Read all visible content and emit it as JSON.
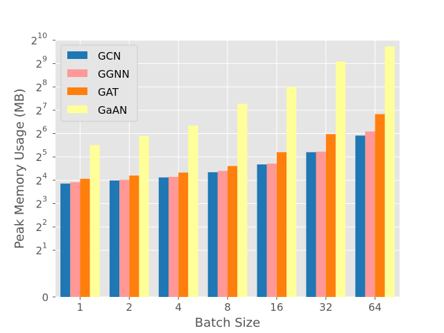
{
  "chart_data": {
    "type": "bar",
    "title": "",
    "xlabel": "Batch Size",
    "ylabel": "Peak Memory Usage (MB)",
    "categories": [
      "1",
      "2",
      "4",
      "8",
      "16",
      "32",
      "64"
    ],
    "y_scale": "log2",
    "ylim": [
      0,
      1024
    ],
    "y_ticks": [
      {
        "value": 0,
        "base": "0",
        "exp": ""
      },
      {
        "value": 2,
        "base": "2",
        "exp": "1"
      },
      {
        "value": 4,
        "base": "2",
        "exp": "2"
      },
      {
        "value": 8,
        "base": "2",
        "exp": "3"
      },
      {
        "value": 16,
        "base": "2",
        "exp": "4"
      },
      {
        "value": 32,
        "base": "2",
        "exp": "5"
      },
      {
        "value": 64,
        "base": "2",
        "exp": "6"
      },
      {
        "value": 128,
        "base": "2",
        "exp": "7"
      },
      {
        "value": 256,
        "base": "2",
        "exp": "8"
      },
      {
        "value": 512,
        "base": "2",
        "exp": "9"
      },
      {
        "value": 1024,
        "base": "2",
        "exp": "10"
      }
    ],
    "grid": true,
    "legend_position": "top-left",
    "series": [
      {
        "name": "GCN",
        "color": "#1f77b4",
        "values": [
          14.5,
          15.9,
          17.4,
          20.3,
          25.6,
          36.8,
          60.3
        ]
      },
      {
        "name": "GGNN",
        "color": "#ff9896",
        "values": [
          15.1,
          16.2,
          17.7,
          21.1,
          26.2,
          37.4,
          68.1
        ]
      },
      {
        "name": "GAT",
        "color": "#ff7f0e",
        "values": [
          16.7,
          18.4,
          20.1,
          24.4,
          36.8,
          63.0,
          114.0
        ]
      },
      {
        "name": "GaAN",
        "color": "#ffff99",
        "values": [
          45.3,
          59.4,
          81.1,
          154.6,
          256.0,
          542.0,
          849.0
        ]
      }
    ]
  }
}
